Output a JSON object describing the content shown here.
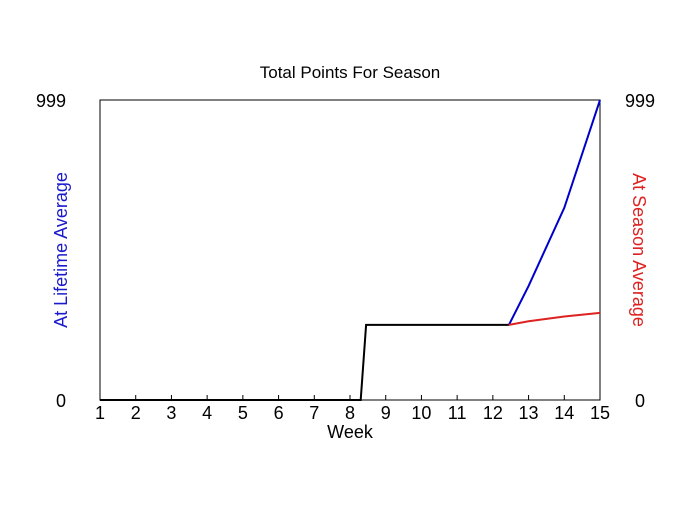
{
  "chart_data": {
    "type": "line",
    "title": "Total Points For Season",
    "xlabel": "Week",
    "ylabel_left": "At Lifetime Average",
    "ylabel_right": "At Season Average",
    "xlim": [
      1,
      15
    ],
    "ylim": [
      0,
      999
    ],
    "x_ticks": [
      "1",
      "2",
      "3",
      "4",
      "5",
      "6",
      "7",
      "8",
      "9",
      "10",
      "11",
      "12",
      "13",
      "14",
      "15"
    ],
    "y_ticks_left": [
      "0",
      "999"
    ],
    "y_ticks_right": [
      "0",
      "999"
    ],
    "grid": false,
    "series": [
      {
        "color": "#000000",
        "points": [
          [
            1,
            0
          ],
          [
            8.3,
            0
          ],
          [
            8.45,
            250
          ],
          [
            12.45,
            250
          ]
        ]
      },
      {
        "color": "#0000cc",
        "points": [
          [
            12.45,
            250
          ],
          [
            13,
            380
          ],
          [
            14,
            640
          ],
          [
            15,
            999
          ]
        ]
      },
      {
        "color": "#dd2222",
        "points": [
          [
            12.45,
            250
          ],
          [
            13,
            262
          ],
          [
            14,
            278
          ],
          [
            15,
            290
          ]
        ]
      }
    ]
  }
}
